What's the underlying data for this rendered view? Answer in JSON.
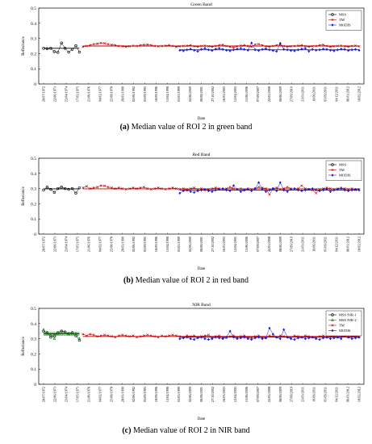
{
  "chart_data": [
    {
      "type": "line",
      "title": "Green Band",
      "xlabel": "Date",
      "ylabel": "Reflectance",
      "ylim": [
        0,
        0.5
      ],
      "yticks": [
        "0",
        "0.1",
        "0.2",
        "0.3",
        "0.4",
        "0.5"
      ],
      "legend_position": "top-right",
      "caption_label": "(a)",
      "caption_text": "Median value of ROI 2 in green band",
      "x_tick_labels": [
        "28/07/1972",
        "22/06/1973",
        "23/04/1974",
        "17/05/1975",
        "21/06/1976",
        "04/02/1977",
        "25/08/1978",
        "28/03/1990",
        "02/06/1992",
        "03/09/1995",
        "18/09/1996",
        "13/04/1998",
        "03/05/1999",
        "02/06/2000",
        "08/08/2001",
        "27/10/2002",
        "16/03/2003",
        "12/04/2005",
        "15/06/2006",
        "07/09/2007",
        "22/05/2008",
        "08/06/2009",
        "27/09/2010",
        "21/03/2011",
        "19/06/2011",
        "05/09/2011",
        "04/12/2011",
        "06/01/2012",
        "18/02/2012"
      ],
      "series": [
        {
          "name": "MSS",
          "color": "#000000",
          "x_start": 0,
          "x_end": 10,
          "values": [
            0.235,
            0.232,
            0.235,
            0.213,
            0.208,
            0.27,
            0.235,
            0.21,
            0.228,
            0.252,
            0.21
          ],
          "mean": 0.235
        },
        {
          "name": "TM",
          "color": "#c00000",
          "x_start": 11,
          "x_end": 88,
          "values": [
            0.245,
            0.25,
            0.255,
            0.262,
            0.265,
            0.27,
            0.268,
            0.262,
            0.258,
            0.255,
            0.25,
            0.248,
            0.245,
            0.248,
            0.252,
            0.25,
            0.255,
            0.258,
            0.26,
            0.255,
            0.25,
            0.248,
            0.25,
            0.252,
            0.255,
            0.25,
            0.245,
            0.248,
            0.25,
            0.252,
            0.255,
            0.248,
            0.245,
            0.25,
            0.252,
            0.248,
            0.245,
            0.25,
            0.255,
            0.258,
            0.25,
            0.245,
            0.24,
            0.248,
            0.252,
            0.255,
            0.25,
            0.245,
            0.26,
            0.262,
            0.255,
            0.248,
            0.245,
            0.25,
            0.255,
            0.258,
            0.25,
            0.245,
            0.248,
            0.25,
            0.252,
            0.255,
            0.25,
            0.245,
            0.248,
            0.25,
            0.255,
            0.258,
            0.25,
            0.245,
            0.248,
            0.25,
            0.252,
            0.248,
            0.245,
            0.25,
            0.252,
            0.248
          ],
          "mean": 0.25
        },
        {
          "name": "MODIS",
          "color": "#1a1ad6",
          "x_start": 38,
          "x_end": 88,
          "values": [
            0.222,
            0.218,
            0.225,
            0.23,
            0.222,
            0.215,
            0.228,
            0.235,
            0.225,
            0.22,
            0.23,
            0.235,
            0.228,
            0.222,
            0.218,
            0.225,
            0.23,
            0.235,
            0.228,
            0.222,
            0.27,
            0.225,
            0.22,
            0.228,
            0.232,
            0.225,
            0.22,
            0.215,
            0.268,
            0.228,
            0.225,
            0.22,
            0.218,
            0.225,
            0.23,
            0.235,
            0.215,
            0.228,
            0.222,
            0.225,
            0.23,
            0.228,
            0.222,
            0.218,
            0.225,
            0.23,
            0.228,
            0.22,
            0.225,
            0.228,
            0.222
          ],
          "mean": 0.225
        }
      ]
    },
    {
      "type": "line",
      "title": "Red Band",
      "xlabel": "Date",
      "ylabel": "Reflectance",
      "ylim": [
        0,
        0.5
      ],
      "yticks": [
        "0",
        "0.1",
        "0.2",
        "0.3",
        "0.4",
        "0.5"
      ],
      "legend_position": "top-right",
      "caption_label": "(b)",
      "caption_text": "Median value of ROI 2 in red band",
      "x_tick_labels": [
        "28/07/1972",
        "22/06/1973",
        "23/04/1974",
        "17/05/1975",
        "21/06/1976",
        "04/02/1977",
        "25/08/1978",
        "28/03/1990",
        "02/06/1992",
        "03/09/1995",
        "18/09/1996",
        "13/04/1998",
        "03/05/1999",
        "02/06/2000",
        "08/08/2001",
        "27/10/2002",
        "16/03/2003",
        "12/04/2005",
        "15/06/2006",
        "07/09/2007",
        "22/05/2008",
        "08/06/2009",
        "27/09/2010",
        "21/03/2011",
        "19/06/2011",
        "05/09/2011",
        "04/12/2011",
        "06/01/2012",
        "18/02/2012"
      ],
      "series": [
        {
          "name": "MSS",
          "color": "#000000",
          "x_start": 0,
          "x_end": 10,
          "values": [
            0.29,
            0.31,
            0.295,
            0.275,
            0.3,
            0.31,
            0.3,
            0.295,
            0.3,
            0.27,
            0.305
          ],
          "mean": 0.298
        },
        {
          "name": "TM",
          "color": "#c00000",
          "x_start": 11,
          "x_end": 88,
          "values": [
            0.305,
            0.315,
            0.3,
            0.305,
            0.31,
            0.32,
            0.318,
            0.31,
            0.305,
            0.3,
            0.305,
            0.3,
            0.295,
            0.3,
            0.305,
            0.3,
            0.305,
            0.31,
            0.3,
            0.295,
            0.3,
            0.305,
            0.3,
            0.295,
            0.3,
            0.305,
            0.3,
            0.295,
            0.3,
            0.29,
            0.3,
            0.305,
            0.295,
            0.3,
            0.29,
            0.295,
            0.3,
            0.305,
            0.3,
            0.295,
            0.3,
            0.31,
            0.3,
            0.295,
            0.3,
            0.29,
            0.3,
            0.295,
            0.3,
            0.31,
            0.305,
            0.3,
            0.26,
            0.3,
            0.305,
            0.295,
            0.3,
            0.31,
            0.3,
            0.295,
            0.3,
            0.32,
            0.3,
            0.295,
            0.29,
            0.27,
            0.295,
            0.3,
            0.305,
            0.3,
            0.295,
            0.3,
            0.305,
            0.3,
            0.295,
            0.3,
            0.29,
            0.295
          ],
          "mean": 0.298
        },
        {
          "name": "MODIS",
          "color": "#1a1ad6",
          "x_start": 38,
          "x_end": 88,
          "values": [
            0.27,
            0.285,
            0.29,
            0.28,
            0.275,
            0.285,
            0.29,
            0.295,
            0.285,
            0.28,
            0.29,
            0.295,
            0.3,
            0.29,
            0.285,
            0.32,
            0.295,
            0.28,
            0.29,
            0.295,
            0.285,
            0.3,
            0.34,
            0.295,
            0.28,
            0.29,
            0.3,
            0.285,
            0.34,
            0.29,
            0.28,
            0.295,
            0.3,
            0.29,
            0.285,
            0.29,
            0.295,
            0.3,
            0.29,
            0.285,
            0.29,
            0.295,
            0.28,
            0.29,
            0.295,
            0.3,
            0.29,
            0.285,
            0.29,
            0.295,
            0.29
          ],
          "mean": 0.29
        }
      ]
    },
    {
      "type": "line",
      "title": "NIR Band",
      "xlabel": "Date",
      "ylabel": "Reflectance",
      "ylim": [
        0,
        0.5
      ],
      "yticks": [
        "0",
        "0.1",
        "0.2",
        "0.3",
        "0.4",
        "0.5"
      ],
      "legend_position": "top-right",
      "caption_label": "(c)",
      "caption_text": "Median value of ROI 2 in NIR band",
      "x_tick_labels": [
        "28/07/1972",
        "22/06/1973",
        "23/04/1974",
        "17/05/1975",
        "21/06/1976",
        "04/02/1977",
        "25/08/1978",
        "28/03/1990",
        "02/06/1992",
        "03/09/1995",
        "18/09/1996",
        "13/04/1998",
        "03/05/1999",
        "02/06/2000",
        "08/08/2001",
        "27/10/2002",
        "16/03/2003",
        "12/04/2005",
        "15/06/2006",
        "07/09/2007",
        "22/05/2008",
        "08/06/2009",
        "27/09/2010",
        "21/03/2011",
        "19/06/2011",
        "05/09/2011",
        "04/12/2011",
        "06/01/2012",
        "18/02/2012"
      ],
      "series": [
        {
          "name": "MSS NIR-1",
          "color": "#000000",
          "x_start": 0,
          "x_end": 10,
          "values": [
            0.35,
            0.34,
            0.31,
            0.32,
            0.34,
            0.35,
            0.345,
            0.33,
            0.34,
            0.32,
            0.29
          ],
          "mean": 0.333
        },
        {
          "name": "MSS NIR-2",
          "color": "#1a8a1a",
          "x_start": 0,
          "x_end": 10,
          "values": [
            0.36,
            0.335,
            0.325,
            0.3,
            0.335,
            0.345,
            0.34,
            0.335,
            0.33,
            0.335,
            0.3
          ],
          "mean": 0.34
        },
        {
          "name": "TM",
          "color": "#c00000",
          "x_start": 11,
          "x_end": 88,
          "values": [
            0.33,
            0.32,
            0.33,
            0.325,
            0.315,
            0.32,
            0.325,
            0.32,
            0.315,
            0.31,
            0.32,
            0.325,
            0.32,
            0.315,
            0.32,
            0.31,
            0.315,
            0.32,
            0.325,
            0.32,
            0.315,
            0.31,
            0.32,
            0.315,
            0.32,
            0.325,
            0.32,
            0.315,
            0.31,
            0.32,
            0.315,
            0.32,
            0.31,
            0.315,
            0.32,
            0.325,
            0.31,
            0.315,
            0.32,
            0.31,
            0.305,
            0.315,
            0.32,
            0.31,
            0.315,
            0.32,
            0.31,
            0.305,
            0.315,
            0.32,
            0.31,
            0.305,
            0.32,
            0.315,
            0.31,
            0.32,
            0.315,
            0.31,
            0.305,
            0.32,
            0.315,
            0.31,
            0.32,
            0.315,
            0.31,
            0.305,
            0.315,
            0.32,
            0.31,
            0.315,
            0.32,
            0.31,
            0.315,
            0.32,
            0.31,
            0.315,
            0.32,
            0.31
          ],
          "mean": 0.315
        },
        {
          "name": "MODIS",
          "color": "#1a1ad6",
          "x_start": 38,
          "x_end": 88,
          "values": [
            0.3,
            0.305,
            0.31,
            0.3,
            0.295,
            0.305,
            0.31,
            0.3,
            0.295,
            0.3,
            0.31,
            0.305,
            0.3,
            0.31,
            0.35,
            0.31,
            0.3,
            0.305,
            0.31,
            0.3,
            0.295,
            0.305,
            0.31,
            0.3,
            0.305,
            0.37,
            0.33,
            0.31,
            0.3,
            0.36,
            0.31,
            0.3,
            0.295,
            0.305,
            0.31,
            0.3,
            0.305,
            0.31,
            0.3,
            0.295,
            0.305,
            0.31,
            0.3,
            0.305,
            0.31,
            0.3,
            0.34,
            0.31,
            0.3,
            0.305,
            0.31
          ],
          "mean": 0.31
        }
      ]
    }
  ]
}
